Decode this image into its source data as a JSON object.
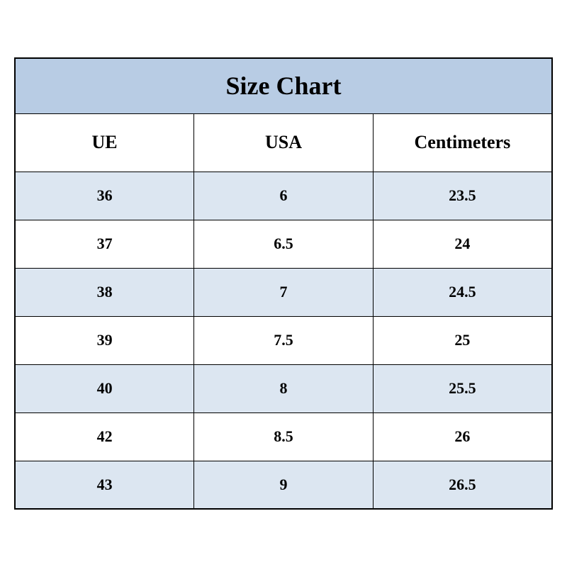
{
  "table": {
    "type": "table",
    "title": "Size Chart",
    "title_bg_color": "#b8cce4",
    "title_fontsize": 36,
    "header_bg_color": "#ffffff",
    "header_fontsize": 26,
    "odd_row_bg": "#dce6f1",
    "even_row_bg": "#ffffff",
    "body_fontsize": 22,
    "border_color": "#000000",
    "text_color": "#000000",
    "font_family": "Times New Roman",
    "columns": [
      {
        "key": "ue",
        "label": "UE",
        "width_pct": 33.33,
        "align": "center"
      },
      {
        "key": "usa",
        "label": "USA",
        "width_pct": 33.33,
        "align": "center"
      },
      {
        "key": "cm",
        "label": "Centimeters",
        "width_pct": 33.34,
        "align": "center"
      }
    ],
    "rows": [
      {
        "ue": "36",
        "usa": "6",
        "cm": "23.5"
      },
      {
        "ue": "37",
        "usa": "6.5",
        "cm": "24"
      },
      {
        "ue": "38",
        "usa": "7",
        "cm": "24.5"
      },
      {
        "ue": "39",
        "usa": "7.5",
        "cm": "25"
      },
      {
        "ue": "40",
        "usa": "8",
        "cm": "25.5"
      },
      {
        "ue": "42",
        "usa": "8.5",
        "cm": "26"
      },
      {
        "ue": "43",
        "usa": "9",
        "cm": "26.5"
      }
    ]
  }
}
